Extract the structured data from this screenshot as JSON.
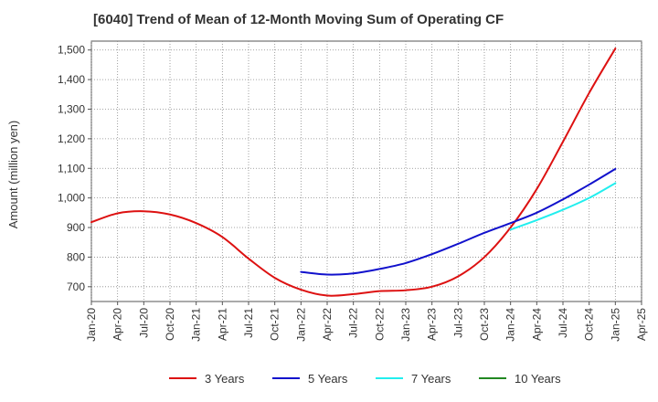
{
  "chart_data": {
    "type": "line",
    "title": "[6040]  Trend of Mean of 12-Month Moving Sum of Operating CF",
    "xlabel": "",
    "ylabel": "Amount (million yen)",
    "ylim": [
      650,
      1530
    ],
    "yticks": [
      700,
      800,
      900,
      1000,
      1100,
      1200,
      1300,
      1400,
      1500
    ],
    "ytick_labels": [
      "700",
      "800",
      "900",
      "1,000",
      "1,100",
      "1,200",
      "1,300",
      "1,400",
      "1,500"
    ],
    "xticks": [
      "Jan-20",
      "Apr-20",
      "Jul-20",
      "Oct-20",
      "Jan-21",
      "Apr-21",
      "Jul-21",
      "Oct-21",
      "Jan-22",
      "Apr-22",
      "Jul-22",
      "Oct-22",
      "Jan-23",
      "Apr-23",
      "Jul-23",
      "Oct-23",
      "Jan-24",
      "Apr-24",
      "Jul-24",
      "Oct-24",
      "Jan-25",
      "Apr-25"
    ],
    "xlim_months": [
      0,
      63
    ],
    "grid": true,
    "legend_position": "bottom",
    "series": [
      {
        "name": "3 Years",
        "color": "#dd1111",
        "x_months": [
          0,
          3,
          6,
          9,
          12,
          15,
          18,
          21,
          24,
          27,
          30,
          33,
          36,
          39,
          42,
          45,
          48,
          51,
          54,
          57,
          60
        ],
        "values": [
          918,
          948,
          955,
          944,
          915,
          868,
          795,
          730,
          690,
          670,
          675,
          685,
          688,
          700,
          735,
          800,
          900,
          1030,
          1190,
          1355,
          1505
        ]
      },
      {
        "name": "5 Years",
        "color": "#1111cc",
        "x_months": [
          24,
          27,
          30,
          33,
          36,
          39,
          42,
          45,
          48,
          51,
          54,
          57,
          60
        ],
        "values": [
          750,
          741,
          745,
          760,
          780,
          810,
          845,
          882,
          915,
          950,
          995,
          1045,
          1098
        ]
      },
      {
        "name": "7 Years",
        "color": "#22eeee",
        "x_months": [
          48,
          51,
          54,
          57,
          60
        ],
        "values": [
          893,
          925,
          960,
          1000,
          1050
        ]
      },
      {
        "name": "10 Years",
        "color": "#228822",
        "x_months": [],
        "values": []
      }
    ]
  }
}
